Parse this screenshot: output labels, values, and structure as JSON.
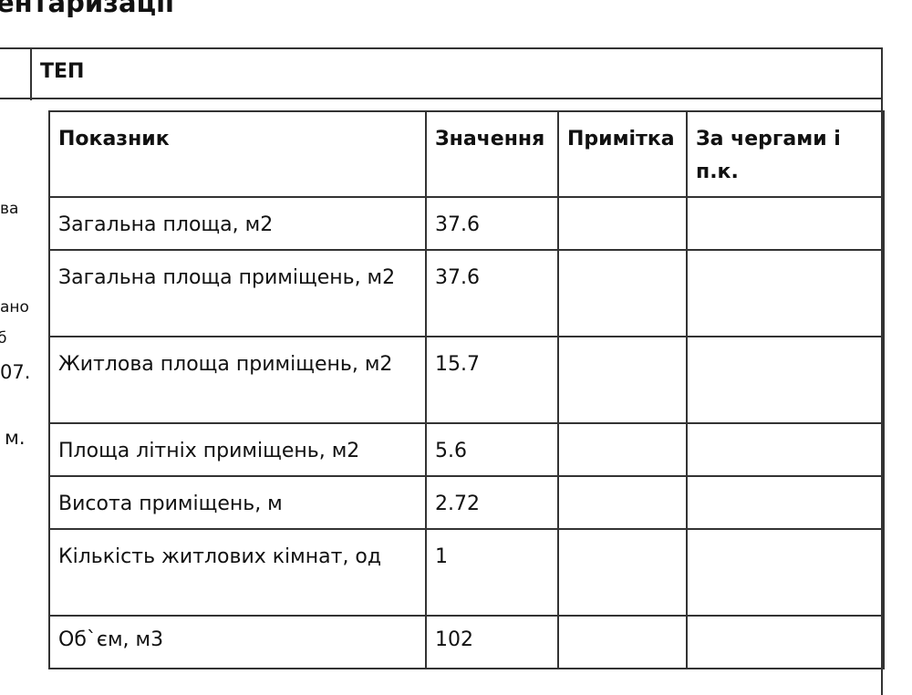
{
  "page_title_fragment": "ентаризації",
  "section_label": "ТЕП",
  "left_fragments": [
    "ва",
    "ано",
    "б",
    "07.",
    "м."
  ],
  "table": {
    "headers": [
      "Показник",
      "Значення",
      "Примітка",
      "За чергами і п.к."
    ],
    "rows": [
      [
        "Загальна площа, м2",
        "37.6",
        "",
        ""
      ],
      [
        "Загальна площа приміщень, м2",
        "37.6",
        "",
        ""
      ],
      [
        "Житлова площа приміщень, м2",
        "15.7",
        "",
        ""
      ],
      [
        "Площа літніх приміщень, м2",
        "5.6",
        "",
        ""
      ],
      [
        "Висота приміщень, м",
        "2.72",
        "",
        ""
      ],
      [
        "Кількість житлових кімнат, од",
        "1",
        "",
        ""
      ],
      [
        "Об`єм, м3",
        "102",
        "",
        ""
      ]
    ]
  }
}
